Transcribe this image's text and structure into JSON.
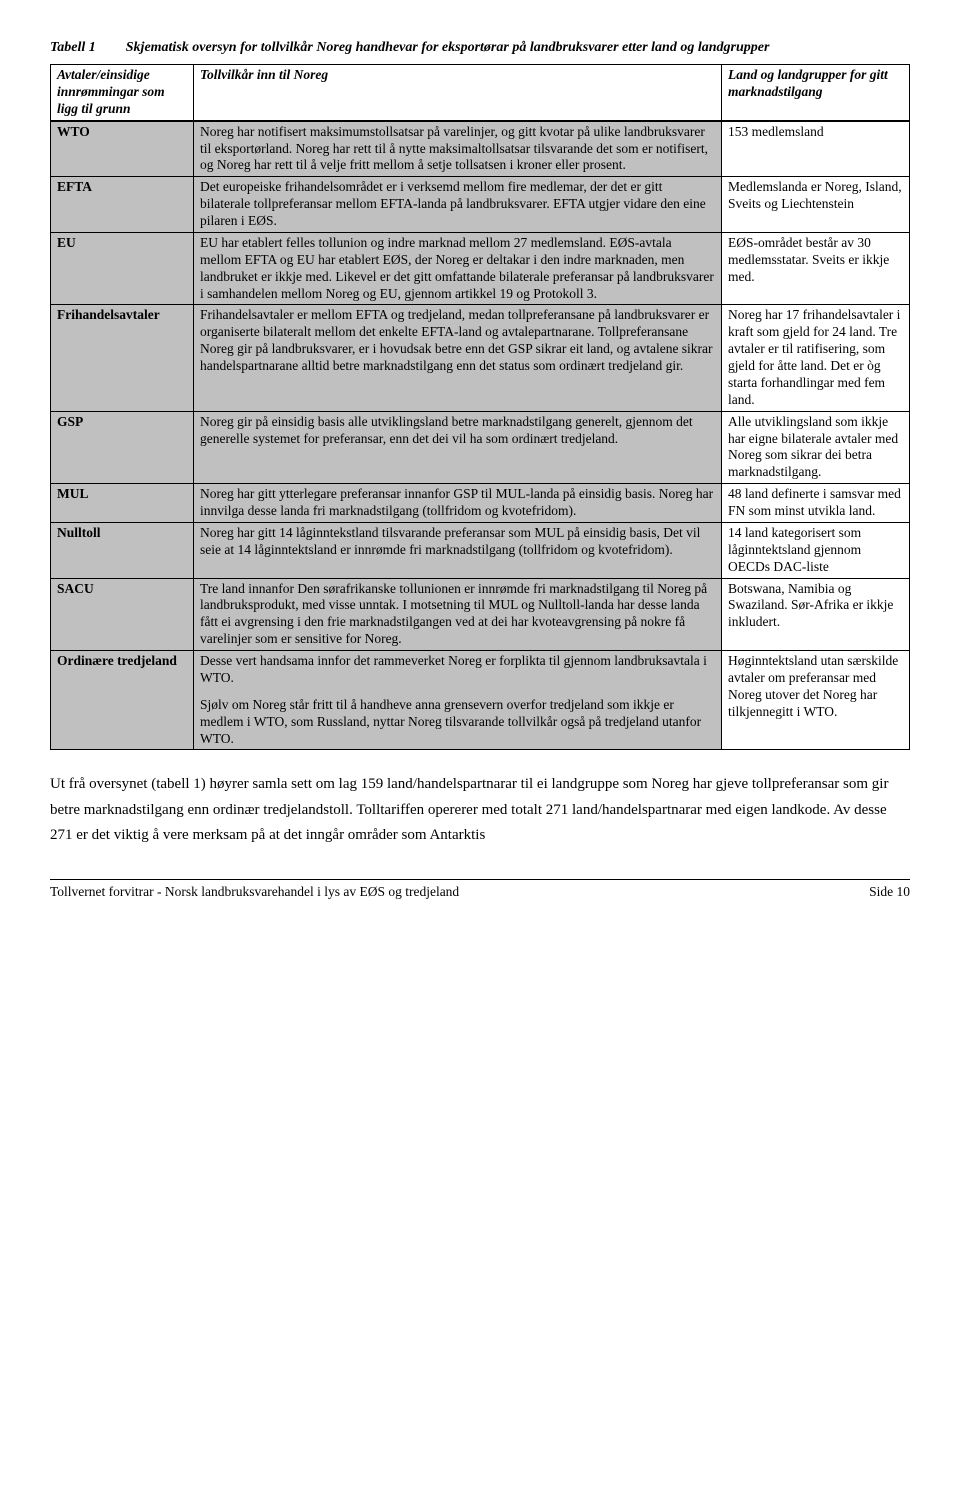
{
  "table_label": "Tabell 1",
  "table_title": "Skjematisk oversyn for tollvilkår Noreg handhevar for eksportørar på landbruksvarer etter land og landgrupper",
  "header": {
    "col1": "Avtaler/einsidige innrømmingar som ligg til grunn",
    "col2": "Tollvilkår inn til Noreg",
    "col3": "Land og landgrupper for gitt marknadstilgang"
  },
  "rows": [
    {
      "c1": "WTO",
      "c2": "Noreg har notifisert maksimumstollsatsar på varelinjer, og gitt kvotar på ulike landbruksvarer til eksportørland. Noreg har rett til å nytte maksimaltollsatsar tilsvarande det som er notifisert, og Noreg har rett til å velje fritt mellom å setje tollsatsen i kroner eller prosent.",
      "c3": "153 medlemsland"
    },
    {
      "c1": "EFTA",
      "c2": "Det europeiske frihandelsområdet er i verksemd mellom fire medlemar, der det er gitt bilaterale tollpreferansar mellom EFTA-landa på landbruksvarer. EFTA utgjer vidare den eine pilaren i EØS.",
      "c3": "Medlemslanda er Noreg, Island, Sveits og Liechtenstein"
    },
    {
      "c1": "EU",
      "c2": "EU har etablert felles tollunion og indre marknad mellom 27 medlemsland. EØS-avtala mellom EFTA og EU har etablert EØS, der Noreg er deltakar i den indre marknaden, men landbruket er ikkje med. Likevel er det gitt omfattande bilaterale preferansar på landbruksvarer i samhandelen mellom Noreg og EU, gjennom artikkel 19 og Protokoll 3.",
      "c3": "EØS-området består av 30 medlemsstatar. Sveits er ikkje med."
    },
    {
      "c1": "Frihandelsavtaler",
      "c2": "Frihandelsavtaler er mellom EFTA og tredjeland, medan tollpreferansane på landbruksvarer er organiserte bilateralt mellom det enkelte EFTA-land og avtalepartnarane. Tollpreferansane Noreg gir på landbruksvarer, er i hovudsak betre enn det GSP sikrar eit land, og avtalene sikrar handelspartnarane alltid betre marknadstilgang enn det status som ordinært tredjeland gir.",
      "c3": "Noreg har 17 frihandelsavtaler i kraft som gjeld for 24 land. Tre avtaler er til ratifisering, som gjeld for åtte land. Det er òg starta forhandlingar med fem land."
    },
    {
      "c1": "GSP",
      "c2": "Noreg gir på einsidig basis alle utviklingsland betre marknadstilgang generelt, gjennom det generelle systemet for preferansar, enn det dei vil ha som ordinært tredjeland.",
      "c3": "Alle utviklingsland som ikkje har eigne bilaterale avtaler med Noreg som sikrar dei betra marknadstilgang."
    },
    {
      "c1": "MUL",
      "c2": "Noreg har gitt ytterlegare preferansar innanfor GSP til MUL-landa på einsidig basis. Noreg har innvilga desse landa fri marknadstilgang (tollfridom og kvotefridom).",
      "c3": "48 land definerte i samsvar med FN som minst utvikla land."
    },
    {
      "c1": "Nulltoll",
      "c2": "Noreg har gitt 14 låginntekstland tilsvarande preferansar som MUL på einsidig basis, Det vil seie at 14 låginntektsland er innrømde fri marknadstilgang (tollfridom og kvotefridom).",
      "c3": "14 land kategorisert som låginntektsland gjennom OECDs DAC-liste"
    },
    {
      "c1": "SACU",
      "c2": "Tre land innanfor Den sørafrikanske tollunionen er innrømde fri marknadstilgang til Noreg på landbruksprodukt, med visse unntak. I motsetning til MUL og Nulltoll-landa har desse landa fått ei avgrensing i den frie marknadstilgangen ved at dei har kvoteavgrensing på nokre få varelinjer som er sensitive for Noreg.",
      "c3": "Botswana, Namibia og Swaziland. Sør-Afrika er ikkje inkludert."
    },
    {
      "c1": "Ordinære tredjeland",
      "c2a": "Desse vert handsama innfor det rammeverket Noreg er forplikta til gjennom landbruksavtala i WTO.",
      "c2b": "Sjølv om Noreg står fritt til å handheve anna grensevern overfor tredjeland som ikkje er medlem i WTO, som Russland, nyttar Noreg tilsvarande tollvilkår også på tredjeland utanfor WTO.",
      "c3": "Høginntektsland utan særskilde avtaler om preferansar med Noreg utover det Noreg har tilkjennegitt i WTO."
    }
  ],
  "body_para": "Ut frå oversynet (tabell 1) høyrer samla sett om lag 159 land/handelspartnarar til ei landgruppe som Noreg har gjeve tollpreferansar som gir betre marknadstilgang enn ordinær tredjelandstoll. Tolltariffen opererer med totalt 271 land/handelspartnarar med eigen landkode. Av desse 271 er det viktig å vere merksam på at det inngår områder som Antarktis",
  "footer_left": "Tollvernet forvitrar - Norsk landbruksvarehandel i lys av EØS og tredjeland",
  "footer_right": "Side 10"
}
